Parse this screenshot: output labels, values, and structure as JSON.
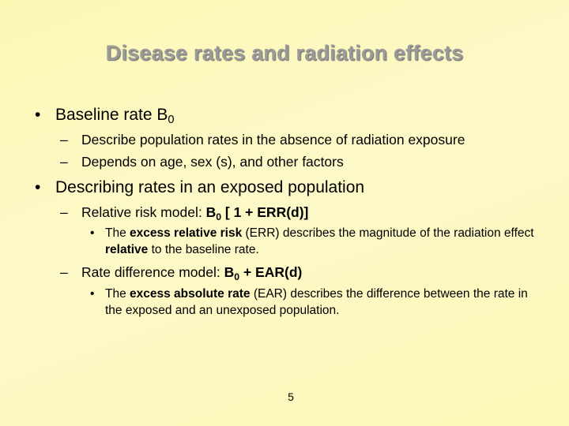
{
  "slide": {
    "title": "Disease rates and radiation effects",
    "page_number": "5",
    "bullets": [
      {
        "marker": "•",
        "text": "Baseline rate  B",
        "sub": "0"
      },
      {
        "marker": "–",
        "text": "Describe population rates in the absence of radiation exposure"
      },
      {
        "marker": "–",
        "text": "Depends on age, sex (s), and other factors"
      },
      {
        "marker": "•",
        "text": "Describing rates in an exposed population"
      },
      {
        "marker": "–",
        "text": "Relative risk model:  ",
        "formula_base": "B",
        "formula_sub": "0",
        "formula_rest": " [ 1 + ERR(d)]"
      },
      {
        "marker": "•",
        "parts": [
          "The ",
          "excess relative risk",
          " (ERR) describes the magnitude of the radiation effect ",
          "relative",
          " to the baseline rate."
        ]
      },
      {
        "marker": "–",
        "text": "Rate difference model: ",
        "formula_base": "B",
        "formula_sub": "0",
        "formula_rest": " + EAR(d)"
      },
      {
        "marker": "•",
        "parts": [
          "The ",
          "excess absolute rate",
          " (EAR) describes the difference between the rate in the exposed and an unexposed population."
        ]
      }
    ]
  }
}
